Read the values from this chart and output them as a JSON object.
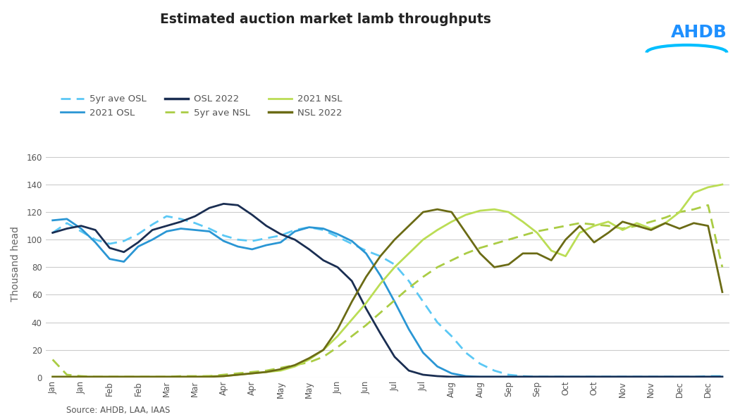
{
  "title": "Estimated auction market lamb throughputs",
  "ylabel": "Thousand head",
  "source": "Source: AHDB, LAA, IAAS",
  "ylim": [
    0,
    165
  ],
  "yticks": [
    0,
    20,
    40,
    60,
    80,
    100,
    120,
    140,
    160
  ],
  "colors": {
    "osl_5yr": "#5BC8F5",
    "osl_2021": "#2A96D4",
    "osl_2022": "#1A2E52",
    "nsl_5yr": "#AACC44",
    "nsl_2021": "#BBDD55",
    "nsl_2022": "#6B6B15"
  },
  "x_tick_positions": [
    0,
    2,
    4,
    6,
    8,
    10,
    12,
    14,
    16,
    18,
    20,
    22,
    24,
    26,
    28,
    30,
    32,
    34,
    36,
    38,
    40,
    42,
    44,
    46
  ],
  "x_labels": [
    "Jan",
    "Jan",
    "Feb",
    "Feb",
    "Mar",
    "Mar",
    "Apr",
    "Apr",
    "May",
    "May",
    "Jun",
    "Jun",
    "Jul",
    "Jul",
    "Aug",
    "Aug",
    "Sep",
    "Sep",
    "Oct",
    "Oct",
    "Nov",
    "Nov",
    "Dec",
    "Dec"
  ],
  "osl_5yr": [
    105,
    112,
    106,
    100,
    97,
    99,
    104,
    111,
    117,
    115,
    112,
    108,
    103,
    100,
    99,
    101,
    103,
    107,
    109,
    107,
    102,
    97,
    92,
    88,
    82,
    70,
    55,
    40,
    30,
    18,
    10,
    5,
    2,
    1,
    0.5,
    0.5,
    0.5,
    0.5,
    0.5,
    0.5,
    0.5,
    0.5,
    0.5,
    0.5,
    0.5,
    0.5,
    1,
    1
  ],
  "osl_2021": [
    114,
    115,
    108,
    98,
    86,
    84,
    95,
    100,
    106,
    108,
    107,
    106,
    99,
    95,
    93,
    96,
    98,
    106,
    109,
    108,
    104,
    99,
    90,
    74,
    55,
    35,
    18,
    8,
    3,
    1,
    0.5,
    0.5,
    0.5,
    0.5,
    0.5,
    0.5,
    0.5,
    0.5,
    0.5,
    0.5,
    0.5,
    0.5,
    0.5,
    0.5,
    0.5,
    0.5,
    0.5,
    0.5
  ],
  "osl_2022": [
    105,
    108,
    110,
    107,
    94,
    91,
    98,
    107,
    110,
    113,
    117,
    123,
    126,
    125,
    118,
    110,
    104,
    100,
    93,
    85,
    80,
    70,
    50,
    32,
    15,
    5,
    2,
    1,
    0.5,
    0.5,
    0.5,
    0.5,
    0.5,
    0.5,
    0.5,
    0.5,
    0.5,
    0.5,
    0.5,
    0.5,
    0.5,
    0.5,
    0.5,
    0.5,
    0.5,
    0.5,
    0.5,
    0.5
  ],
  "nsl_5yr": [
    13,
    2,
    1,
    0.5,
    0.5,
    0.5,
    0.5,
    0.5,
    0.5,
    1,
    1,
    1,
    2,
    3,
    4,
    5,
    7,
    9,
    11,
    15,
    22,
    30,
    38,
    47,
    56,
    65,
    73,
    80,
    85,
    90,
    94,
    97,
    100,
    103,
    106,
    108,
    110,
    112,
    111,
    110,
    108,
    110,
    113,
    116,
    120,
    122,
    125,
    80
  ],
  "nsl_2021": [
    0.5,
    0.5,
    0.5,
    0.5,
    0.5,
    0.5,
    0.5,
    0.5,
    0.5,
    0.5,
    0.5,
    1,
    1,
    2,
    3,
    4,
    5,
    8,
    13,
    20,
    30,
    42,
    54,
    68,
    80,
    90,
    100,
    107,
    113,
    118,
    121,
    122,
    120,
    113,
    105,
    92,
    88,
    105,
    110,
    113,
    107,
    112,
    108,
    112,
    120,
    134,
    138,
    140
  ],
  "nsl_2022": [
    0.5,
    0.5,
    0.5,
    0.5,
    0.5,
    0.5,
    0.5,
    0.5,
    0.5,
    0.5,
    0.5,
    0.5,
    1,
    2,
    3,
    4,
    6,
    9,
    14,
    20,
    35,
    55,
    73,
    88,
    100,
    110,
    120,
    122,
    120,
    105,
    90,
    80,
    82,
    90,
    90,
    85,
    100,
    110,
    98,
    105,
    113,
    110,
    107,
    112,
    108,
    112,
    110,
    62
  ],
  "background_color": "#FFFFFF",
  "grid_color": "#CCCCCC"
}
